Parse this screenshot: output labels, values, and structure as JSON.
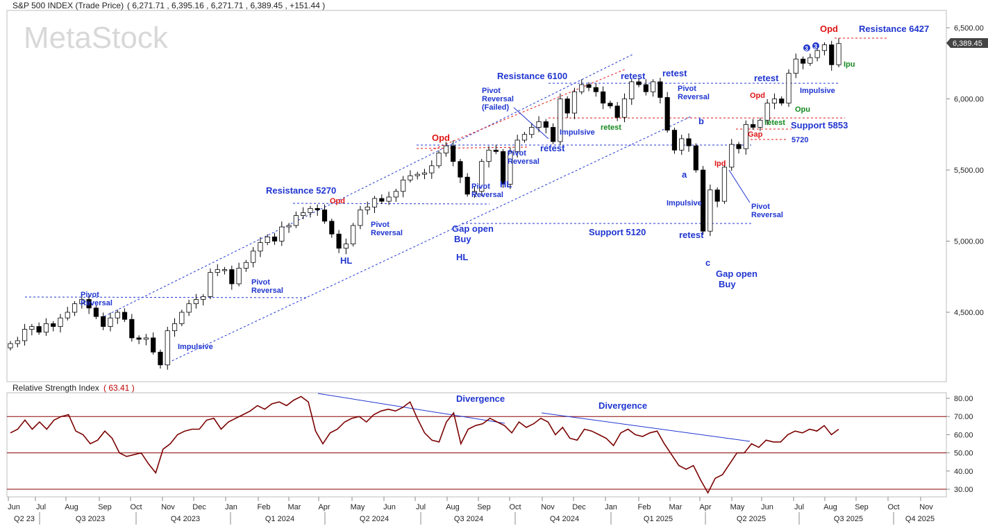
{
  "header": {
    "symbol": "S&P 500 INDEX (Trade Price)",
    "ohlc_text": "( 6,271.71 ,  6,395.16 ,  6,271.71 ,  6,389.45 ,  +151.44 )",
    "watermark": "MetaStock"
  },
  "rsi_header": {
    "label": "Relative Strength Index",
    "value_text": "( 63.41 )"
  },
  "last_price_tag": "6,389.45",
  "colors": {
    "line_blue": "#1f35d0",
    "red": "#e01515",
    "green": "#14891e",
    "rsi": "#7a0000",
    "up_candle": "#ffffff",
    "down_candle": "#000000"
  },
  "x_axis": {
    "months": [
      "Jun",
      "Jul",
      "Aug",
      "Sep",
      "Oct",
      "Nov",
      "Dec",
      "Jan",
      "Feb",
      "Mar",
      "Apr",
      "May",
      "Jun",
      "Jul",
      "Aug",
      "Sep",
      "Oct",
      "Nov",
      "Dec",
      "Jan",
      "Feb",
      "Mar",
      "Apr",
      "May",
      "Jun",
      "Jul",
      "Aug",
      "Sep",
      "Oct",
      "Nov"
    ],
    "quarters": [
      "Q2 23",
      "Q3 2023",
      "Q4 2023",
      "Q1 2024",
      "Q2 2024",
      "Q3 2024",
      "Q4 2024",
      "Q1 2025",
      "Q2 2025",
      "Q3 2025",
      "Q4 2025"
    ]
  },
  "chart_data": [
    {
      "type": "candlestick",
      "title": "S&P 500 INDEX (Trade Price)",
      "period": "weekly",
      "y_ticks": [
        4500,
        5000,
        5500,
        6000,
        6500
      ],
      "y_tick_labels": [
        "4,500.00",
        "5,000.00",
        "5,500.00",
        "6,000.00",
        "6,500.00"
      ],
      "ylim": [
        4050,
        6560
      ],
      "last_close": 6389.45,
      "close_series": [
        4280,
        4300,
        4380,
        4400,
        4360,
        4420,
        4400,
        4460,
        4500,
        4560,
        4590,
        4530,
        4470,
        4400,
        4460,
        4500,
        4450,
        4320,
        4310,
        4320,
        4220,
        4130,
        4370,
        4420,
        4500,
        4560,
        4590,
        4610,
        4780,
        4800,
        4800,
        4700,
        4810,
        4850,
        4930,
        4990,
        5030,
        5000,
        5100,
        5110,
        5180,
        5200,
        5230,
        5220,
        5140,
        5050,
        4950,
        4980,
        5110,
        5220,
        5240,
        5300,
        5280,
        5310,
        5350,
        5430,
        5460,
        5470,
        5480,
        5530,
        5620,
        5670,
        5560,
        5450,
        5330,
        5350,
        5560,
        5640,
        5630,
        5400,
        5630,
        5710,
        5750,
        5800,
        5840,
        5800,
        5700,
        6000,
        5900,
        6050,
        6100,
        6080,
        6050,
        5970,
        5950,
        5870,
        6000,
        6120,
        6100,
        6050,
        6120,
        6010,
        5780,
        5640,
        5720,
        5670,
        5500,
        5070,
        5360,
        5280,
        5520,
        5680,
        5650,
        5820,
        5800,
        5850,
        5970,
        6000,
        5970,
        6180,
        6280,
        6250,
        6290,
        6340,
        6380,
        6240,
        6389
      ]
    },
    {
      "type": "line",
      "title": "Relative Strength Index",
      "last_value": 63.41,
      "ylim": [
        26,
        82
      ],
      "y_ticks": [
        30,
        40,
        50,
        60,
        70,
        80
      ],
      "y_tick_labels": [
        "30.00",
        "40.00",
        "50.00",
        "60.00",
        "70.00",
        "80.00"
      ],
      "reference_lines": [
        30,
        50,
        70
      ],
      "values": [
        61,
        63,
        68,
        63,
        67,
        63,
        68,
        70,
        71,
        62,
        60,
        55,
        57,
        62,
        58,
        50,
        48,
        49,
        50,
        44,
        39,
        52,
        55,
        60,
        62,
        63,
        63,
        68,
        69,
        63,
        67,
        69,
        71,
        73,
        76,
        74,
        77,
        78,
        76,
        79,
        81,
        78,
        62,
        55,
        61,
        63,
        67,
        69,
        70,
        67,
        71,
        73,
        74,
        73,
        75,
        78,
        69,
        61,
        57,
        56,
        67,
        72,
        55,
        63,
        65,
        66,
        69,
        67,
        65,
        61,
        67,
        64,
        66,
        69,
        67,
        60,
        64,
        58,
        57,
        63,
        62,
        60,
        58,
        54,
        61,
        63,
        60,
        59,
        61,
        62,
        55,
        49,
        43,
        41,
        43,
        35,
        28,
        36,
        38,
        44,
        50,
        50,
        55,
        53,
        57,
        56,
        56,
        60,
        62,
        61,
        63,
        62,
        65,
        60,
        63
      ]
    }
  ],
  "annotations": {
    "resistance_6427": "Resistance 6427",
    "resistance_6100": "Resistance 6100",
    "resistance_5270": "Resistance 5270",
    "support_5853": "Support 5853",
    "support_5120": "Support 5120",
    "level_5720": "5720",
    "opd": "Opd",
    "ipd": "Ipd",
    "ipu": "Ipu",
    "opu": "Opu",
    "gap": "Gap",
    "retest": "retest",
    "impulsive": "Impulsive",
    "pivot": "Pivot",
    "reversal": "Reversal",
    "failed": "(Failed)",
    "hl": "HL",
    "gap_open": "Gap open",
    "buy": "Buy",
    "wave_a": "a",
    "wave_b": "b",
    "wave_c": "c",
    "count_3": "3",
    "divergence": "Divergence"
  }
}
